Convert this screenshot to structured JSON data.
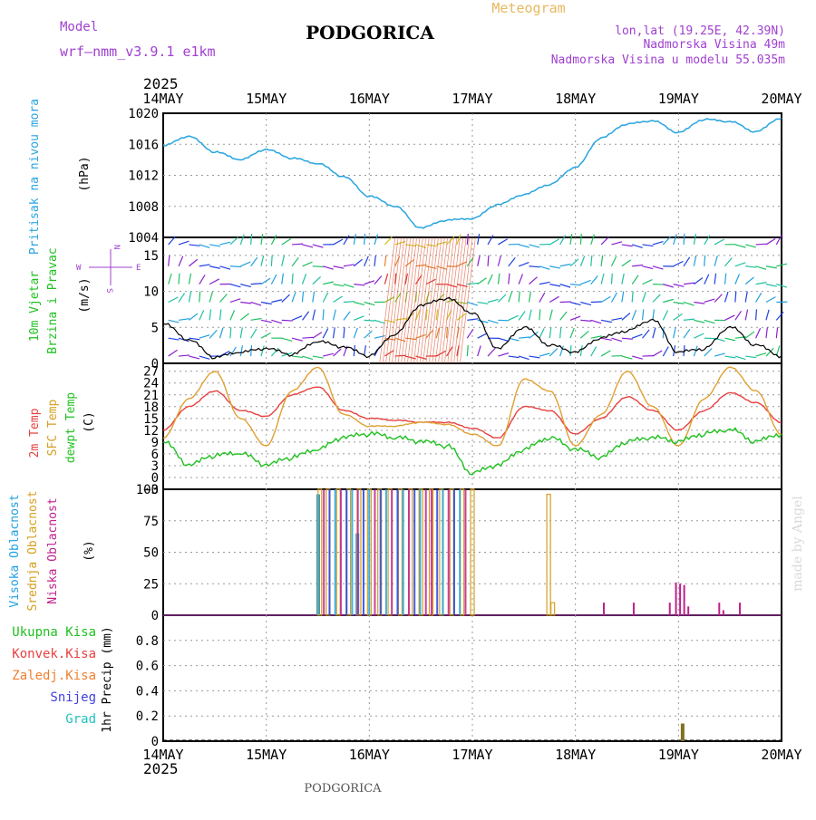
{
  "header": {
    "model_label": "Model",
    "model_name": "wrf—nmm_v3.9.1 e1km",
    "title": "PODGORICA",
    "meteogram": "Meteogram",
    "location": "lon,lat (19.25E, 42.39N)",
    "elevation": "Nadmorska Visina 49m",
    "model_elevation": "Nadmorska Visina u modelu 55.035m",
    "year": "2025",
    "footer_year": "2025",
    "footer_station": "PODGORICA",
    "watermark": "made by Angel"
  },
  "colors": {
    "pressure": "#27a4e0",
    "temp2m": "#e84040",
    "sfc_temp": "#e0a030",
    "dewpoint": "#20c020",
    "high_cloud": "#20a0e0",
    "mid_cloud": "#d4a020",
    "low_cloud": "#c0208c",
    "precip": "#807020",
    "wind_speed": "#000000",
    "grid": "#999999"
  },
  "x_axis": {
    "labels": [
      "14MAY",
      "15MAY",
      "16MAY",
      "17MAY",
      "18MAY",
      "19MAY",
      "20MAY"
    ]
  },
  "panels": {
    "pressure": {
      "ylabel": "Pritisak na nivou mora",
      "unit": "(hPa)",
      "ylim": [
        1004,
        1020
      ],
      "ticks": [
        "1004",
        "1008",
        "1012",
        "1016",
        "1020"
      ]
    },
    "wind": {
      "ylabel1": "10m Vjetar",
      "ylabel2": "Brzina i Pravac",
      "unit": "(m/s)",
      "ylim": [
        0,
        17.5
      ],
      "ticks": [
        "0",
        "5",
        "10",
        "15"
      ],
      "compass_n": "N",
      "compass_s": "S",
      "compass_w": "W",
      "compass_e": "E"
    },
    "temperature": {
      "ylabel1": "2m Temp",
      "ylabel2": "SFC Temp",
      "ylabel3": "dewpt Temp",
      "unit": "(C)",
      "ylim": [
        -3,
        29
      ],
      "ticks": [
        "−3",
        "0",
        "3",
        "6",
        "9",
        "12",
        "15",
        "18",
        "21",
        "24",
        "27"
      ]
    },
    "cloud": {
      "ylabel1": "Visoka Oblacnost",
      "ylabel2": "Srednja Oblacnost",
      "ylabel3": "Niska Oblacnost",
      "unit": "(%)",
      "ylim": [
        0,
        100
      ],
      "ticks": [
        "0",
        "25",
        "50",
        "75",
        "100"
      ]
    },
    "precip": {
      "legend": [
        "Ukupna Kisa",
        "Konvek.Kisa",
        "Zaledj.Kisa",
        "Snijeg",
        "Grad"
      ],
      "legend_colors": [
        "#20c020",
        "#e84040",
        "#f08030",
        "#4040e0",
        "#20c0c0"
      ],
      "ylabel": "1hr Precip (mm)",
      "ylim": [
        0,
        1
      ],
      "ticks": [
        "0",
        "0.2",
        "0.4",
        "0.6",
        "0.8"
      ]
    }
  },
  "chart_data": [
    {
      "type": "line",
      "title": "Pritisak na nivou mora",
      "ylabel": "(hPa)",
      "x": [
        0,
        0.25,
        0.5,
        0.75,
        1,
        1.25,
        1.5,
        1.75,
        2,
        2.25,
        2.5,
        2.75,
        3,
        3.25,
        3.5,
        3.75,
        4,
        4.25,
        4.5,
        4.75,
        5,
        5.25,
        5.5,
        5.75,
        6
      ],
      "series": [
        {
          "values": [
            1015.8,
            1017.0,
            1015.0,
            1014.0,
            1015.3,
            1014.2,
            1013.5,
            1011.8,
            1009.3,
            1008.0,
            1005.2,
            1006.2,
            1006.4,
            1008.2,
            1009.5,
            1010.8,
            1013.0,
            1016.8,
            1018.6,
            1019.0,
            1017.5,
            1019.2,
            1018.9,
            1017.6,
            1019.4
          ]
        }
      ],
      "ylim": [
        1004,
        1020
      ]
    },
    {
      "type": "line",
      "title": "10m Vjetar Brzina i Pravac",
      "ylabel": "(m/s)",
      "x": [
        0,
        0.25,
        0.5,
        0.75,
        1,
        1.25,
        1.5,
        1.75,
        2,
        2.25,
        2.5,
        2.75,
        3,
        3.25,
        3.5,
        3.75,
        4,
        4.25,
        4.5,
        4.75,
        5,
        5.25,
        5.5,
        5.75,
        6
      ],
      "series": [
        {
          "values": [
            5.5,
            3.2,
            0.8,
            1.5,
            2.0,
            1.2,
            3.0,
            2.2,
            1.0,
            4.0,
            8.0,
            9.0,
            7.0,
            2.0,
            5.0,
            2.5,
            1.5,
            3.5,
            4.5,
            6.0,
            1.5,
            2.0,
            5.0,
            2.5,
            1.0
          ]
        }
      ],
      "ylim": [
        0,
        17.5
      ]
    },
    {
      "type": "line",
      "title": "2m Temp / SFC Temp / dewpt Temp",
      "ylabel": "(C)",
      "x": [
        0,
        0.25,
        0.5,
        0.75,
        1,
        1.25,
        1.5,
        1.75,
        2,
        2.25,
        2.5,
        2.75,
        3,
        3.25,
        3.5,
        3.75,
        4,
        4.25,
        4.5,
        4.75,
        5,
        5.25,
        5.5,
        5.75,
        6
      ],
      "series": [
        {
          "name": "2m Temp",
          "values": [
            12,
            18,
            22,
            17,
            15.5,
            21,
            23,
            17,
            15,
            14.5,
            14,
            14,
            12.5,
            10,
            18,
            17,
            11,
            15,
            20.5,
            17,
            12,
            17,
            21.5,
            19,
            14
          ]
        },
        {
          "name": "SFC Temp",
          "values": [
            10,
            20,
            27,
            15,
            8,
            22,
            28,
            16,
            13,
            13,
            14,
            13.5,
            11,
            8,
            25,
            22,
            8,
            16,
            27,
            18,
            8,
            20,
            28,
            22,
            11
          ]
        },
        {
          "name": "dewpt Temp",
          "values": [
            9,
            3,
            5.5,
            6,
            3,
            5,
            7,
            10,
            11,
            10,
            9,
            8,
            1,
            3,
            7,
            10,
            7,
            5,
            9,
            10,
            9,
            11,
            12,
            9,
            11
          ]
        }
      ],
      "ylim": [
        -3,
        29
      ]
    },
    {
      "type": "bar",
      "title": "Visoka / Srednja / Niska Oblacnost",
      "ylabel": "(%)",
      "series": [
        {
          "name": "Visoka Oblacnost",
          "bars": [
            [
              1.5,
              96
            ],
            [
              1.88,
              65
            ]
          ]
        },
        {
          "name": "Srednja Oblacnost",
          "bars": [
            [
              1.52,
              100
            ],
            [
              1.6,
              100
            ],
            [
              1.7,
              100
            ],
            [
              1.8,
              100
            ],
            [
              1.9,
              100
            ],
            [
              2.0,
              100
            ],
            [
              2.1,
              100
            ],
            [
              2.2,
              100
            ],
            [
              2.3,
              100
            ],
            [
              2.4,
              100
            ],
            [
              2.5,
              100
            ],
            [
              2.6,
              100
            ],
            [
              2.7,
              100
            ],
            [
              2.8,
              100
            ],
            [
              2.9,
              100
            ],
            [
              3.0,
              100
            ],
            [
              3.74,
              96
            ],
            [
              3.78,
              10
            ]
          ]
        },
        {
          "name": "Niska Oblacnost",
          "bars": [
            [
              4.28,
              10
            ],
            [
              4.57,
              10
            ],
            [
              4.92,
              10
            ],
            [
              4.98,
              26
            ],
            [
              5.02,
              25
            ],
            [
              5.06,
              24
            ],
            [
              5.1,
              7
            ],
            [
              5.4,
              10
            ],
            [
              5.44,
              4
            ],
            [
              5.6,
              10
            ]
          ]
        }
      ],
      "ylim": [
        0,
        100
      ]
    },
    {
      "type": "bar",
      "title": "1hr Precip",
      "ylabel": "(mm)",
      "series": [
        {
          "name": "Ukupna Kisa",
          "bars": [
            [
              5.04,
              0.14
            ]
          ]
        }
      ],
      "ylim": [
        0,
        1
      ]
    }
  ]
}
